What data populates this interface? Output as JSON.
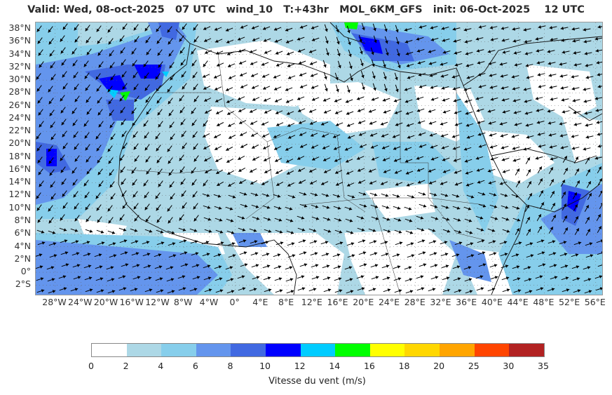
{
  "header": {
    "title": "Valid: Wed, 08-oct-2025   07 UTC   wind_10   T:+43hr   MOL_6KM_GFS   init: 06-Oct-2025    12 UTC"
  },
  "axes": {
    "lat_labels": [
      "38°N",
      "36°N",
      "34°N",
      "32°N",
      "30°N",
      "28°N",
      "26°N",
      "24°N",
      "22°N",
      "20°N",
      "18°N",
      "16°N",
      "14°N",
      "12°N",
      "10°N",
      "8°N",
      "6°N",
      "4°N",
      "2°N",
      "0°",
      "2°S"
    ],
    "lon_labels": [
      "28°W",
      "24°W",
      "20°W",
      "16°W",
      "12°W",
      "8°W",
      "4°W",
      "0°",
      "4°E",
      "8°E",
      "12°E",
      "16°E",
      "20°E",
      "24°E",
      "28°E",
      "32°E",
      "36°E",
      "40°E",
      "44°E",
      "48°E",
      "52°E",
      "56°E"
    ]
  },
  "map": {
    "extent": {
      "lon_min": -31,
      "lon_max": 57,
      "lat_min": -3.5,
      "lat_max": 39
    },
    "field": "wind_10"
  },
  "colorbar": {
    "label": "Vitesse du vent (m/s)",
    "ticks": [
      "0",
      "2",
      "4",
      "6",
      "8",
      "10",
      "12",
      "14",
      "16",
      "18",
      "20",
      "25",
      "30",
      "35"
    ],
    "colors": [
      "#ffffff",
      "#add8e6",
      "#87ceeb",
      "#6495ed",
      "#4169e1",
      "#0000ff",
      "#00ccff",
      "#00ff00",
      "#ffff00",
      "#ffd700",
      "#ffa500",
      "#ff4500",
      "#b22222"
    ]
  }
}
